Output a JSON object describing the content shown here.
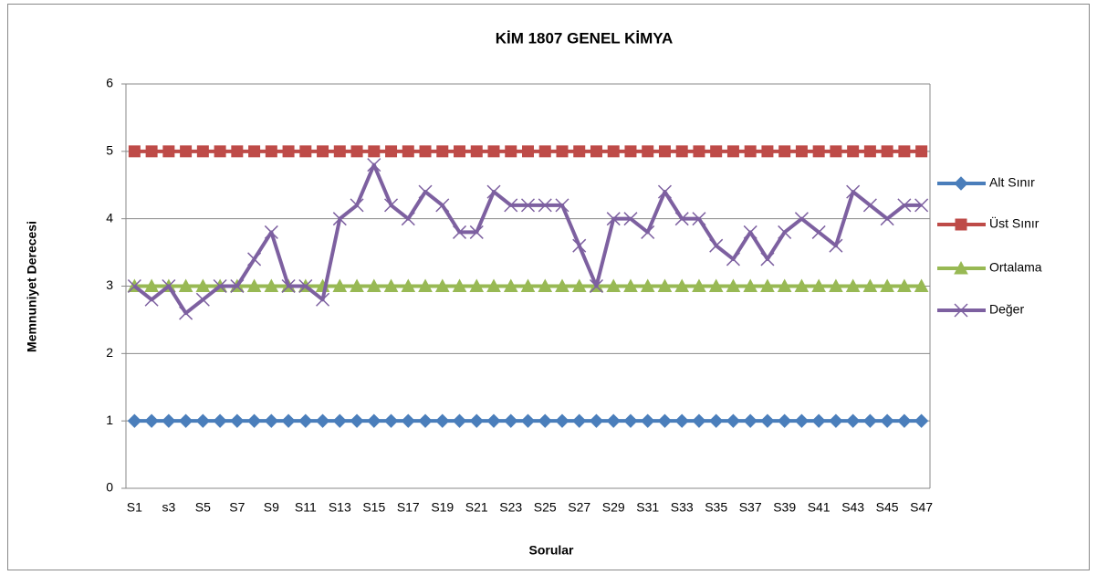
{
  "chart_data": {
    "type": "line",
    "title": "KİM 1807 GENEL KİMYA",
    "x_label": "Sorular",
    "y_label": "Memnuniyet Derecesi",
    "categories": [
      "S1",
      null,
      "s3",
      null,
      "S5",
      null,
      "S7",
      null,
      "S9",
      null,
      "S11",
      null,
      "S13",
      null,
      "S15",
      null,
      "S17",
      null,
      "S19",
      null,
      "S21",
      null,
      "S23",
      null,
      "S25",
      null,
      "S27",
      null,
      "S29",
      null,
      "S31",
      null,
      "S33",
      null,
      "S35",
      null,
      "S37",
      null,
      "S39",
      null,
      "S41",
      null,
      "S43",
      null,
      "S45",
      null,
      "S47"
    ],
    "ylim": [
      0,
      6
    ],
    "yticks": [
      0,
      1,
      2,
      3,
      4,
      5,
      6
    ],
    "grid": true,
    "legend": "right",
    "series": [
      {
        "name": "Alt Sınır",
        "color": "#4a7ebb",
        "marker": "diamond",
        "values": [
          1,
          1,
          1,
          1,
          1,
          1,
          1,
          1,
          1,
          1,
          1,
          1,
          1,
          1,
          1,
          1,
          1,
          1,
          1,
          1,
          1,
          1,
          1,
          1,
          1,
          1,
          1,
          1,
          1,
          1,
          1,
          1,
          1,
          1,
          1,
          1,
          1,
          1,
          1,
          1,
          1,
          1,
          1,
          1,
          1,
          1,
          1
        ]
      },
      {
        "name": "Üst Sınır",
        "color": "#be4b48",
        "marker": "square",
        "values": [
          5,
          5,
          5,
          5,
          5,
          5,
          5,
          5,
          5,
          5,
          5,
          5,
          5,
          5,
          5,
          5,
          5,
          5,
          5,
          5,
          5,
          5,
          5,
          5,
          5,
          5,
          5,
          5,
          5,
          5,
          5,
          5,
          5,
          5,
          5,
          5,
          5,
          5,
          5,
          5,
          5,
          5,
          5,
          5,
          5,
          5,
          5
        ]
      },
      {
        "name": "Ortalama",
        "color": "#98b954",
        "marker": "triangle",
        "values": [
          3,
          3,
          3,
          3,
          3,
          3,
          3,
          3,
          3,
          3,
          3,
          3,
          3,
          3,
          3,
          3,
          3,
          3,
          3,
          3,
          3,
          3,
          3,
          3,
          3,
          3,
          3,
          3,
          3,
          3,
          3,
          3,
          3,
          3,
          3,
          3,
          3,
          3,
          3,
          3,
          3,
          3,
          3,
          3,
          3,
          3,
          3
        ]
      },
      {
        "name": "Değer",
        "color": "#7d60a0",
        "marker": "x",
        "values": [
          3.0,
          2.8,
          3.0,
          2.6,
          2.8,
          3.0,
          3.0,
          3.4,
          3.8,
          3.0,
          3.0,
          2.8,
          4.0,
          4.2,
          4.8,
          4.2,
          4.0,
          4.4,
          4.2,
          3.8,
          3.8,
          4.4,
          4.2,
          4.2,
          4.2,
          4.2,
          3.6,
          3.0,
          4.0,
          4.0,
          3.8,
          4.4,
          4.0,
          4.0,
          3.6,
          3.4,
          3.8,
          3.4,
          3.8,
          4.0,
          3.8,
          3.6,
          4.4,
          4.2,
          4.0,
          4.2,
          4.2
        ]
      }
    ]
  }
}
